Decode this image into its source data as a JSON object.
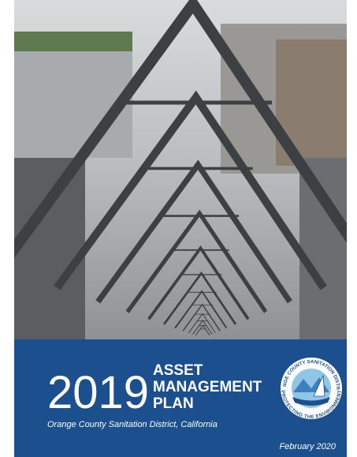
{
  "cover": {
    "year": "2019",
    "title_lines": [
      "ASSET",
      "MANAGEMENT",
      "PLAN"
    ],
    "organization": "Orange County Sanitation District, California",
    "date": "February 2020",
    "logo": {
      "top_text": "ORANGE COUNTY SANITATION DISTRICT",
      "bottom_text": "PROTECTING THE ENVIRONMENT"
    }
  }
}
